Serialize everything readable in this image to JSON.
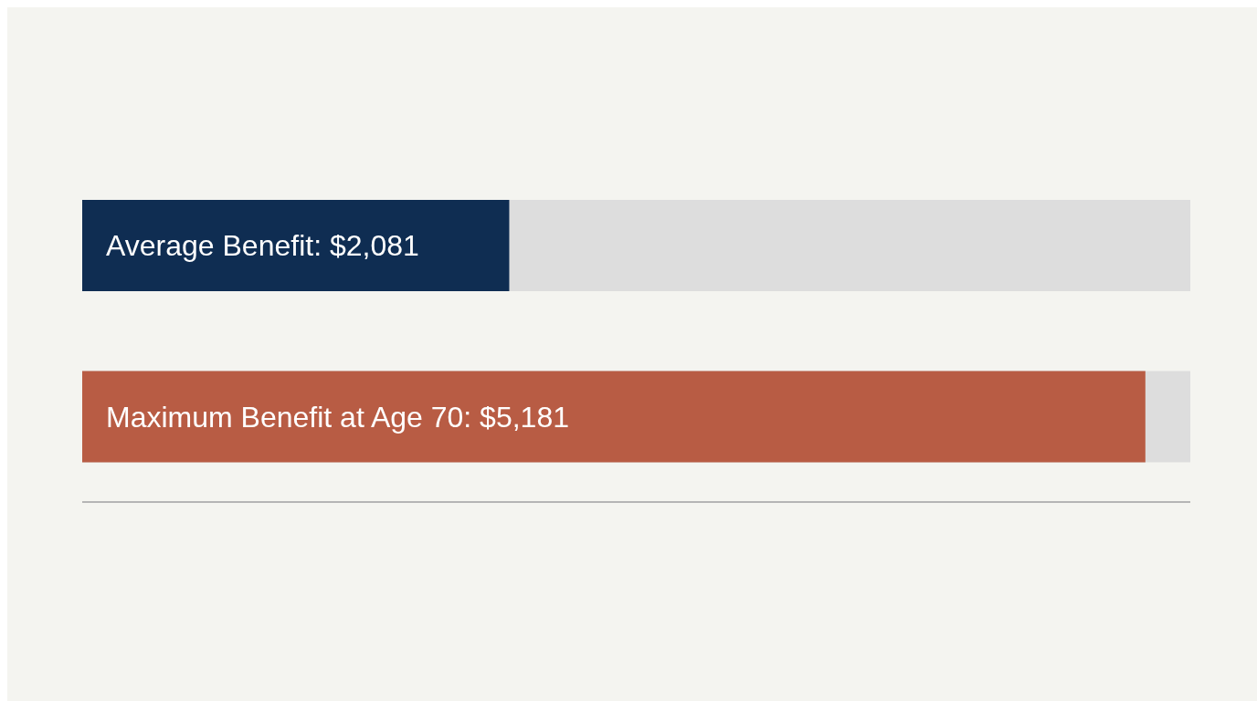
{
  "chart_data": {
    "type": "bar",
    "orientation": "horizontal",
    "categories": [
      null,
      null
    ],
    "values": [
      2081,
      5181
    ],
    "colors": [
      "#0f2d52",
      "#b85c44"
    ],
    "value_labels": [
      "Average Benefit: $2,081",
      "Maximum Benefit at Age 70: $5,181"
    ],
    "xlim": [
      0,
      5400
    ],
    "tick_labels": false,
    "grid": false,
    "legend": false
  }
}
